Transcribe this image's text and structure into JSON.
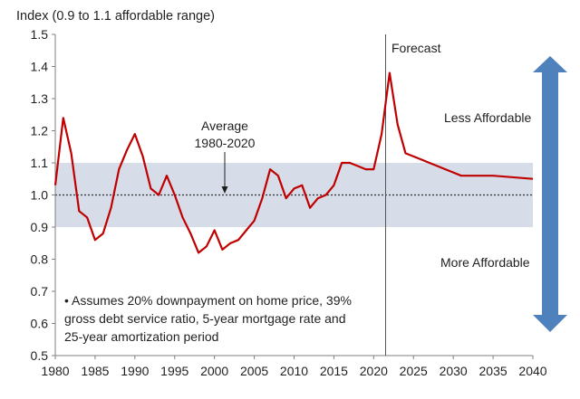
{
  "chart_data": {
    "type": "line",
    "ylabel": "Index (0.9 to 1.1 affordable range)",
    "xlim": [
      1980,
      2040
    ],
    "ylim": [
      0.5,
      1.5
    ],
    "x_ticks": [
      1980,
      1985,
      1990,
      1995,
      2000,
      2005,
      2010,
      2015,
      2020,
      2025,
      2030,
      2035,
      2040
    ],
    "y_ticks": [
      "0.5",
      "0.6",
      "0.7",
      "0.8",
      "0.9",
      "1.0",
      "1.1",
      "1.2",
      "1.3",
      "1.4",
      "1.5"
    ],
    "affordable_band": [
      0.9,
      1.1
    ],
    "average_line": 1.0,
    "forecast_start": 2021.5,
    "series": [
      {
        "color": "#c00000",
        "x": [
          1980,
          1981,
          1982,
          1983,
          1984,
          1985,
          1986,
          1987,
          1988,
          1989,
          1990,
          1991,
          1992,
          1993,
          1994,
          1995,
          1996,
          1997,
          1998,
          1999,
          2000,
          2001,
          2002,
          2003,
          2004,
          2005,
          2006,
          2007,
          2008,
          2009,
          2010,
          2011,
          2012,
          2013,
          2014,
          2015,
          2016,
          2017,
          2018,
          2019,
          2020,
          2021,
          2022,
          2023,
          2024,
          2025,
          2026,
          2027,
          2028,
          2029,
          2030,
          2031,
          2032,
          2035,
          2040
        ],
        "y": [
          1.03,
          1.24,
          1.13,
          0.95,
          0.93,
          0.86,
          0.88,
          0.96,
          1.08,
          1.14,
          1.19,
          1.12,
          1.02,
          1.0,
          1.06,
          1.0,
          0.93,
          0.88,
          0.82,
          0.84,
          0.89,
          0.83,
          0.85,
          0.86,
          0.89,
          0.92,
          0.99,
          1.08,
          1.06,
          0.99,
          1.02,
          1.03,
          0.96,
          0.99,
          1.0,
          1.03,
          1.1,
          1.1,
          1.09,
          1.08,
          1.08,
          1.19,
          1.38,
          1.22,
          1.13,
          1.12,
          1.11,
          1.1,
          1.09,
          1.08,
          1.07,
          1.06,
          1.06,
          1.06,
          1.05
        ]
      }
    ],
    "annotations": {
      "average_line1": "Average",
      "average_line2": "1980-2020",
      "forecast": "Forecast",
      "less_affordable": "Less Affordable",
      "more_affordable": "More Affordable",
      "note_line1": "Assumes 20% downpayment on home price, 39%",
      "note_line2": "gross debt service ratio, 5-year mortgage rate and",
      "note_line3": "25-year amortization period",
      "note_bullet": "•"
    },
    "colors": {
      "line": "#c00000",
      "band": "#d6dde9",
      "arrow": "#4f81bd",
      "forecast_divider": "#555555",
      "average_dotted": "#333333"
    }
  }
}
